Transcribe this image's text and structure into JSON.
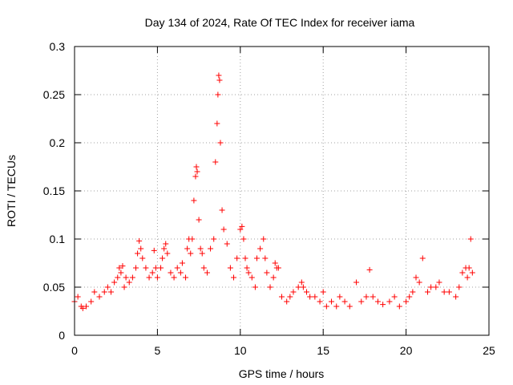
{
  "chart_data": {
    "type": "scatter",
    "title": "Day 134 of 2024, Rate Of TEC Index for receiver iama",
    "xlabel": "GPS time / hours",
    "ylabel": "ROTI / TECUs",
    "xlim": [
      0,
      25
    ],
    "ylim": [
      0,
      0.3
    ],
    "xticks": [
      0,
      5,
      10,
      15,
      20,
      25
    ],
    "xtick_labels": [
      "0",
      "5",
      "10",
      "15",
      "20",
      "25"
    ],
    "yticks": [
      0,
      0.05,
      0.1,
      0.15,
      0.2,
      0.25,
      0.3
    ],
    "ytick_labels": [
      "0",
      "0.05",
      "0.1",
      "0.15",
      "0.2",
      "0.25",
      "0.3"
    ],
    "grid": true,
    "marker": "plus",
    "color": "#ff0000",
    "series": [
      {
        "name": "ROTI",
        "x": [
          0.0,
          0.2,
          0.4,
          0.5,
          0.7,
          1.0,
          1.2,
          1.5,
          1.8,
          2.0,
          2.2,
          2.4,
          2.6,
          2.7,
          2.8,
          2.9,
          3.0,
          3.1,
          3.3,
          3.5,
          3.7,
          3.8,
          3.9,
          4.0,
          4.1,
          4.3,
          4.5,
          4.7,
          4.8,
          4.9,
          5.0,
          5.2,
          5.3,
          5.4,
          5.5,
          5.6,
          5.8,
          6.0,
          6.2,
          6.4,
          6.5,
          6.7,
          6.8,
          6.9,
          7.0,
          7.1,
          7.2,
          7.3,
          7.35,
          7.4,
          7.5,
          7.6,
          7.7,
          7.8,
          8.0,
          8.2,
          8.4,
          8.5,
          8.6,
          8.65,
          8.7,
          8.75,
          8.8,
          8.9,
          9.0,
          9.2,
          9.4,
          9.6,
          9.8,
          10.0,
          10.1,
          10.2,
          10.3,
          10.4,
          10.5,
          10.7,
          10.9,
          11.0,
          11.2,
          11.4,
          11.5,
          11.6,
          11.8,
          12.0,
          12.1,
          12.2,
          12.3,
          12.5,
          12.8,
          13.0,
          13.2,
          13.5,
          13.7,
          13.8,
          14.0,
          14.2,
          14.5,
          14.8,
          15.0,
          15.2,
          15.5,
          15.8,
          16.0,
          16.3,
          16.6,
          17.0,
          17.3,
          17.6,
          17.8,
          18.0,
          18.3,
          18.6,
          19.0,
          19.3,
          19.6,
          20.0,
          20.2,
          20.4,
          20.6,
          20.8,
          21.0,
          21.3,
          21.5,
          21.8,
          22.0,
          22.3,
          22.6,
          23.0,
          23.2,
          23.4,
          23.6,
          23.7,
          23.8,
          23.9,
          24.0
        ],
        "y": [
          0.035,
          0.04,
          0.03,
          0.028,
          0.03,
          0.035,
          0.045,
          0.04,
          0.045,
          0.05,
          0.045,
          0.055,
          0.06,
          0.07,
          0.065,
          0.072,
          0.05,
          0.06,
          0.055,
          0.06,
          0.07,
          0.085,
          0.098,
          0.09,
          0.08,
          0.07,
          0.06,
          0.065,
          0.088,
          0.07,
          0.06,
          0.07,
          0.08,
          0.09,
          0.095,
          0.085,
          0.065,
          0.06,
          0.07,
          0.065,
          0.075,
          0.06,
          0.09,
          0.1,
          0.085,
          0.1,
          0.14,
          0.165,
          0.175,
          0.17,
          0.12,
          0.09,
          0.085,
          0.07,
          0.065,
          0.09,
          0.1,
          0.18,
          0.22,
          0.25,
          0.27,
          0.265,
          0.2,
          0.13,
          0.11,
          0.095,
          0.07,
          0.06,
          0.08,
          0.11,
          0.113,
          0.1,
          0.08,
          0.07,
          0.065,
          0.06,
          0.05,
          0.08,
          0.09,
          0.1,
          0.08,
          0.065,
          0.05,
          0.06,
          0.075,
          0.07,
          0.07,
          0.04,
          0.035,
          0.04,
          0.045,
          0.05,
          0.055,
          0.05,
          0.045,
          0.04,
          0.04,
          0.035,
          0.045,
          0.03,
          0.035,
          0.03,
          0.04,
          0.035,
          0.03,
          0.055,
          0.035,
          0.04,
          0.068,
          0.04,
          0.035,
          0.032,
          0.035,
          0.04,
          0.03,
          0.035,
          0.04,
          0.045,
          0.06,
          0.055,
          0.08,
          0.045,
          0.05,
          0.05,
          0.055,
          0.045,
          0.045,
          0.04,
          0.05,
          0.065,
          0.07,
          0.06,
          0.07,
          0.1,
          0.065
        ]
      }
    ]
  }
}
